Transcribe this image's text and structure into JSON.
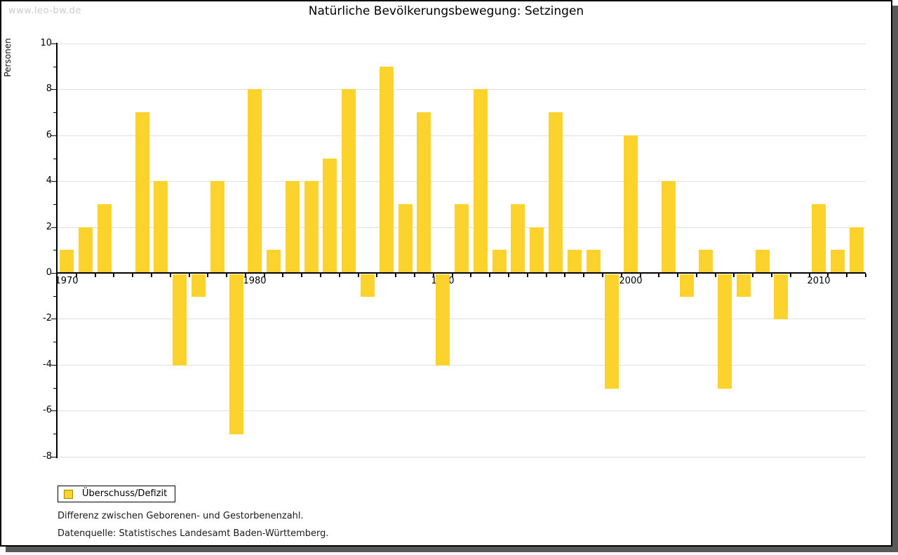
{
  "watermark": {
    "text": "www.leo-bw.de"
  },
  "header": {
    "title": "Natürliche Bevölkerungsbewegung: Setzingen"
  },
  "chart_data": {
    "type": "bar",
    "title": "Natürliche Bevölkerungsbewegung: Setzingen",
    "xlabel": "",
    "ylabel": "Personen",
    "ylim": [
      -8,
      10
    ],
    "ytick_major_step": 2,
    "ytick_minor_step": 1,
    "grid": true,
    "legend_position": "bottom-left",
    "series_name": "Überschuss/Defizit",
    "categories": [
      1970,
      1971,
      1972,
      1973,
      1974,
      1975,
      1976,
      1977,
      1978,
      1979,
      1980,
      1981,
      1982,
      1983,
      1984,
      1985,
      1986,
      1987,
      1988,
      1989,
      1990,
      1991,
      1992,
      1993,
      1994,
      1995,
      1996,
      1997,
      1998,
      1999,
      2000,
      2001,
      2002,
      2003,
      2004,
      2005,
      2006,
      2007,
      2008,
      2009,
      2010,
      2011,
      2012
    ],
    "values": [
      1,
      2,
      3,
      0,
      7,
      4,
      -4,
      -1,
      4,
      -7,
      8,
      1,
      4,
      4,
      5,
      8,
      -1,
      9,
      3,
      7,
      -4,
      3,
      8,
      1,
      3,
      2,
      7,
      1,
      1,
      -5,
      6,
      0,
      4,
      -1,
      1,
      -5,
      -1,
      1,
      -2,
      0,
      3,
      1,
      2
    ],
    "x_axis_labels": [
      "1970",
      "1980",
      "1990",
      "2000",
      "2010"
    ],
    "bar_color": "#FCD32C"
  },
  "legend": {
    "label": "Überschuss/Defizit",
    "swatch_color": "#FCD32C",
    "swatch_border": "#A88A00"
  },
  "footer": {
    "note1": "Differenz zwischen Geborenen- und Gestorbenenzahl.",
    "note2": "Datenquelle: Statistisches Landesamt Baden-Württemberg."
  },
  "colors": {
    "bar": "#FCD32C",
    "gridline": "#E0E0E0",
    "axis": "#000000",
    "watermark_text": "#CBCBCB",
    "shadow": "#595959",
    "frame_border": "#000000",
    "background": "#FFFFFF"
  }
}
